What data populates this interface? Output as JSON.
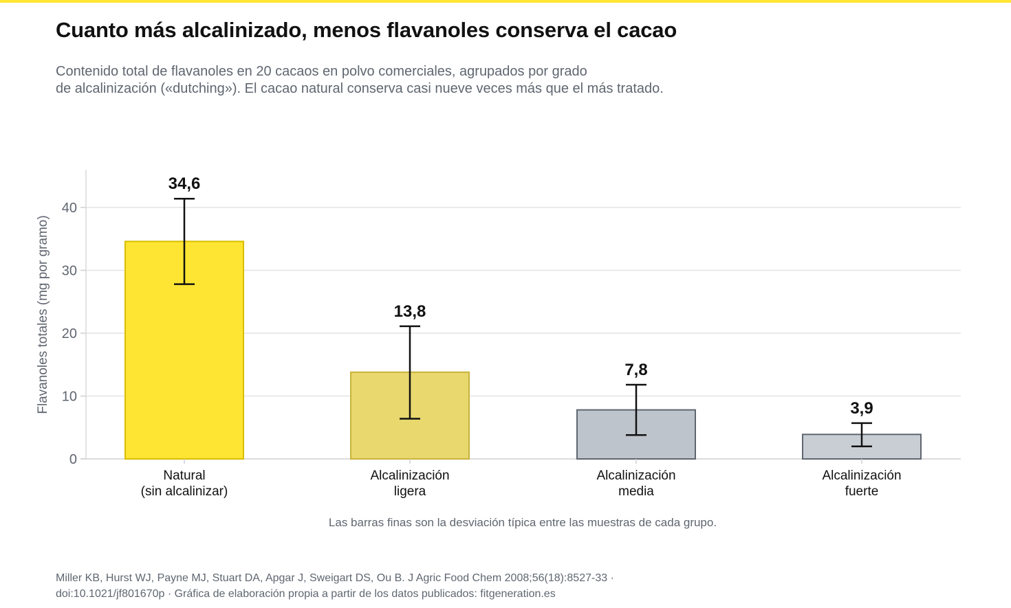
{
  "colors": {
    "accent": "#ffe533",
    "natural_fill": "#ffe533",
    "natural_stroke": "#d9bd00",
    "light_fill": "#e8d86e",
    "light_stroke": "#c9b23a",
    "medium_fill": "#bec4cb",
    "medium_stroke": "#5f6670",
    "strong_fill": "#c9ced5",
    "strong_stroke": "#5f6670",
    "grid": "#e3e3e3",
    "axis_text": "#5f6670",
    "label_text": "#111111"
  },
  "header": {
    "title": "Cuanto más alcalinizado, menos flavanoles conserva el cacao",
    "subtitle_line1": "Contenido total de flavanoles en 20 cacaos en polvo comerciales, agrupados por grado",
    "subtitle_line2": "de alcalinización («dutching»). El cacao natural conserva casi nueve veces más que el más tratado."
  },
  "chart_data": {
    "type": "bar",
    "categories": [
      [
        "Natural",
        "(sin alcalinizar)"
      ],
      [
        "Alcalinización",
        "ligera"
      ],
      [
        "Alcalinización",
        "media"
      ],
      [
        "Alcalinización",
        "fuerte"
      ]
    ],
    "values": [
      34.6,
      13.8,
      7.8,
      3.9
    ],
    "value_labels": [
      "34,6",
      "13,8",
      "7,8",
      "3,9"
    ],
    "error_low": [
      27.8,
      6.4,
      3.8,
      2.0
    ],
    "error_high": [
      41.4,
      21.1,
      11.8,
      5.7
    ],
    "ylabel": "Flavanoles totales (mg por gramo)",
    "ylim": [
      0,
      46
    ],
    "yticks": [
      0,
      10,
      20,
      30,
      40
    ],
    "grid": true,
    "note": "Las barras finas son la desviación típica entre las muestras de cada grupo."
  },
  "footer": {
    "line1": "Miller KB, Hurst WJ, Payne MJ, Stuart DA, Apgar J, Sweigart DS, Ou B. J Agric Food Chem 2008;56(18):8527-33 ·",
    "line2": "doi:10.1021/jf801670p · Gráfica de elaboración propia a partir de los datos publicados: fitgeneration.es"
  }
}
